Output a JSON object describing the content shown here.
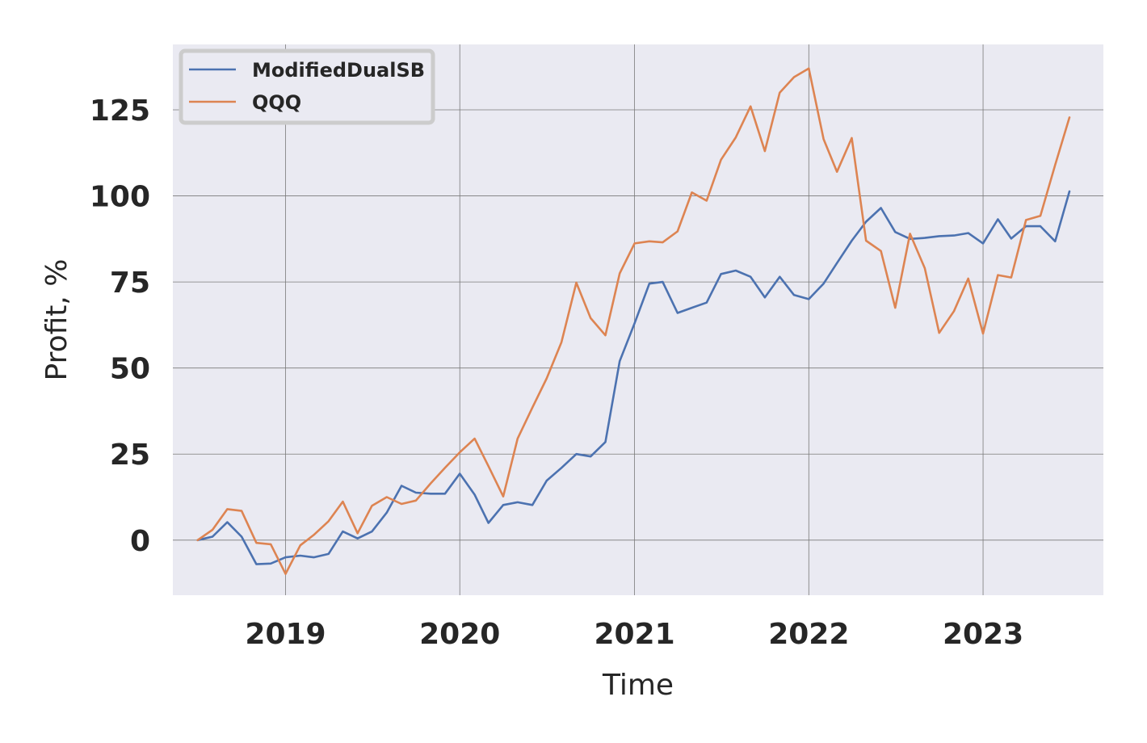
{
  "chart_data": {
    "type": "line",
    "title": "",
    "xlabel": "Time",
    "ylabel": "Profit, %",
    "xlim": [
      "2018-05-10",
      "2023-09-10"
    ],
    "ylim": [
      -16,
      144
    ],
    "x_ticks": [
      {
        "label": "2019",
        "date": "2019-01-01"
      },
      {
        "label": "2020",
        "date": "2020-01-01"
      },
      {
        "label": "2021",
        "date": "2021-01-01"
      },
      {
        "label": "2022",
        "date": "2022-01-01"
      },
      {
        "label": "2023",
        "date": "2023-01-01"
      }
    ],
    "y_ticks": [
      0,
      25,
      50,
      75,
      100,
      125
    ],
    "grid": true,
    "legend": "top-left",
    "background": "#eaeaf2",
    "x": [
      "2018-07-01",
      "2018-08-01",
      "2018-09-01",
      "2018-10-01",
      "2018-11-01",
      "2018-12-01",
      "2019-01-01",
      "2019-02-01",
      "2019-03-01",
      "2019-04-01",
      "2019-05-01",
      "2019-06-01",
      "2019-07-01",
      "2019-08-01",
      "2019-09-01",
      "2019-10-01",
      "2019-11-01",
      "2019-12-01",
      "2020-01-01",
      "2020-02-01",
      "2020-03-01",
      "2020-04-01",
      "2020-05-01",
      "2020-06-01",
      "2020-07-01",
      "2020-08-01",
      "2020-09-01",
      "2020-10-01",
      "2020-11-01",
      "2020-12-01",
      "2021-01-01",
      "2021-02-01",
      "2021-03-01",
      "2021-04-01",
      "2021-05-01",
      "2021-06-01",
      "2021-07-01",
      "2021-08-01",
      "2021-09-01",
      "2021-10-01",
      "2021-11-01",
      "2021-12-01",
      "2022-01-01",
      "2022-02-01",
      "2022-03-01",
      "2022-04-01",
      "2022-05-01",
      "2022-06-01",
      "2022-07-01",
      "2022-08-01",
      "2022-09-01",
      "2022-10-01",
      "2022-11-01",
      "2022-12-01",
      "2023-01-01",
      "2023-02-01",
      "2023-03-01",
      "2023-04-01",
      "2023-05-01",
      "2023-06-01",
      "2023-07-01"
    ],
    "series": [
      {
        "name": "ModifiedDualSB",
        "color": "#4c72b0",
        "values": [
          0,
          1,
          5.2,
          1,
          -7,
          -6.8,
          -5,
          -4.5,
          -5,
          -4,
          2.5,
          0.5,
          2.5,
          8,
          15.8,
          13.8,
          13.5,
          13.5,
          19.3,
          13.2,
          5,
          10.2,
          11,
          10.2,
          17.3,
          21,
          25,
          24.3,
          28.5,
          52,
          63,
          74.5,
          75,
          66,
          67.5,
          69,
          77.3,
          78.3,
          76.5,
          70.5,
          76.5,
          71.2,
          70,
          74.5,
          80.5,
          87,
          92.5,
          96.5,
          89.5,
          87.5,
          87.8,
          88.3,
          88.5,
          89.2,
          86.2,
          93.2,
          87.6,
          91.2,
          91.2,
          86.8,
          101.3
        ]
      },
      {
        "name": "QQQ",
        "color": "#dd8452",
        "values": [
          0,
          3,
          9,
          8.5,
          -0.8,
          -1.2,
          -9.8,
          -1.5,
          1.5,
          5.5,
          11.2,
          2,
          10,
          12.5,
          10.5,
          11.5,
          16.5,
          21,
          25.5,
          29.5,
          21.5,
          12.7,
          29.5,
          38.5,
          47,
          57.5,
          74.8,
          64.5,
          59.5,
          77.5,
          86.2,
          86.8,
          86.5,
          89.7,
          101,
          98.6,
          110.5,
          117,
          126,
          113,
          130,
          134.5,
          137,
          116.5,
          107,
          116.8,
          87,
          84,
          67.5,
          89,
          79,
          60.2,
          66.5,
          76,
          60,
          77,
          76.3,
          93,
          94.2,
          109,
          122.8
        ]
      }
    ]
  }
}
